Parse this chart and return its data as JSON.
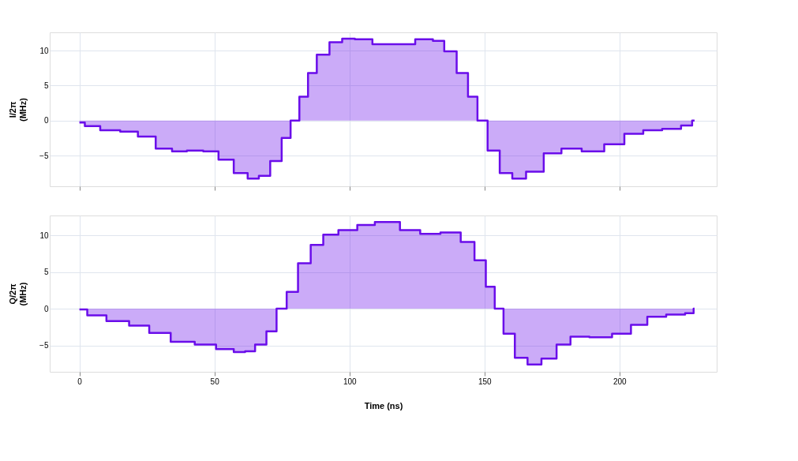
{
  "chart_data": [
    {
      "type": "step",
      "ylabel": "I/2π (MHz)",
      "xlim": [
        -11,
        236
      ],
      "xticks": [
        0,
        50,
        100,
        150,
        200
      ],
      "ylim": [
        -9.4,
        12.6
      ],
      "yticks": [
        -5,
        0,
        5,
        10
      ],
      "grid": true,
      "tick_labels": "y",
      "x": [
        0,
        4,
        11.4,
        18.8,
        24.5,
        32,
        36.6,
        43,
        48.7,
        54.3,
        60,
        64.6,
        68.3,
        73,
        76.8,
        79.6,
        83.3,
        86,
        89.8,
        95.4,
        99.2,
        104.8,
        112.2,
        119.7,
        129,
        132.8,
        137.4,
        142,
        145.8,
        149,
        153.3,
        158,
        162.6,
        168.2,
        175.7,
        181.3,
        190.7,
        198,
        205.6,
        212,
        219.6,
        226,
        227.8
      ],
      "series": [
        {
          "color": "#6a0dea",
          "values": [
            -0.3,
            -0.8,
            -1.4,
            -1.6,
            -2.3,
            -4.0,
            -4.4,
            -4.3,
            -4.4,
            -5.6,
            -7.5,
            -8.3,
            -7.9,
            -5.8,
            -2.5,
            0,
            3.4,
            6.8,
            9.4,
            11.2,
            11.7,
            11.6,
            10.9,
            10.9,
            11.6,
            11.4,
            9.9,
            6.8,
            3.4,
            0,
            -4.3,
            -7.5,
            -8.3,
            -7.3,
            -4.7,
            -4.0,
            -4.4,
            -3.4,
            -1.9,
            -1.4,
            -1.2,
            -0.7,
            0
          ]
        }
      ]
    },
    {
      "type": "step",
      "ylabel": "Q/2π (MHz)",
      "xlabel": "Time (ns)",
      "xlim": [
        -11,
        236
      ],
      "xticks": [
        0,
        50,
        100,
        150,
        200
      ],
      "ylim": [
        -8.6,
        12.7
      ],
      "yticks": [
        -5,
        0,
        5,
        10
      ],
      "grid": true,
      "x": [
        0,
        5.8,
        14.2,
        22.6,
        29.1,
        38.5,
        46.9,
        54.3,
        60,
        62.7,
        67.4,
        71.1,
        74.9,
        78.6,
        83.3,
        88,
        92.6,
        99.2,
        106.6,
        112.2,
        114,
        123.4,
        129,
        138.4,
        144,
        148.6,
        152.4,
        155.2,
        158.9,
        163.6,
        168.3,
        173.9,
        179.5,
        184.2,
        193.5,
        201,
        207.5,
        213.1,
        221.5,
        227.1,
        227.8
      ],
      "series": [
        {
          "color": "#6a0dea",
          "values": [
            -0.1,
            -0.9,
            -1.7,
            -2.3,
            -3.3,
            -4.5,
            -4.9,
            -5.5,
            -5.9,
            -5.8,
            -4.9,
            -3.1,
            0,
            2.3,
            6.2,
            8.7,
            10.1,
            10.7,
            11.4,
            11.8,
            11.8,
            10.7,
            10.2,
            10.4,
            9.1,
            6.6,
            3.0,
            0,
            -3.4,
            -6.7,
            -7.6,
            -6.8,
            -4.9,
            -3.8,
            -3.9,
            -3.4,
            -2.2,
            -1.1,
            -0.8,
            -0.6,
            0
          ]
        }
      ]
    }
  ]
}
